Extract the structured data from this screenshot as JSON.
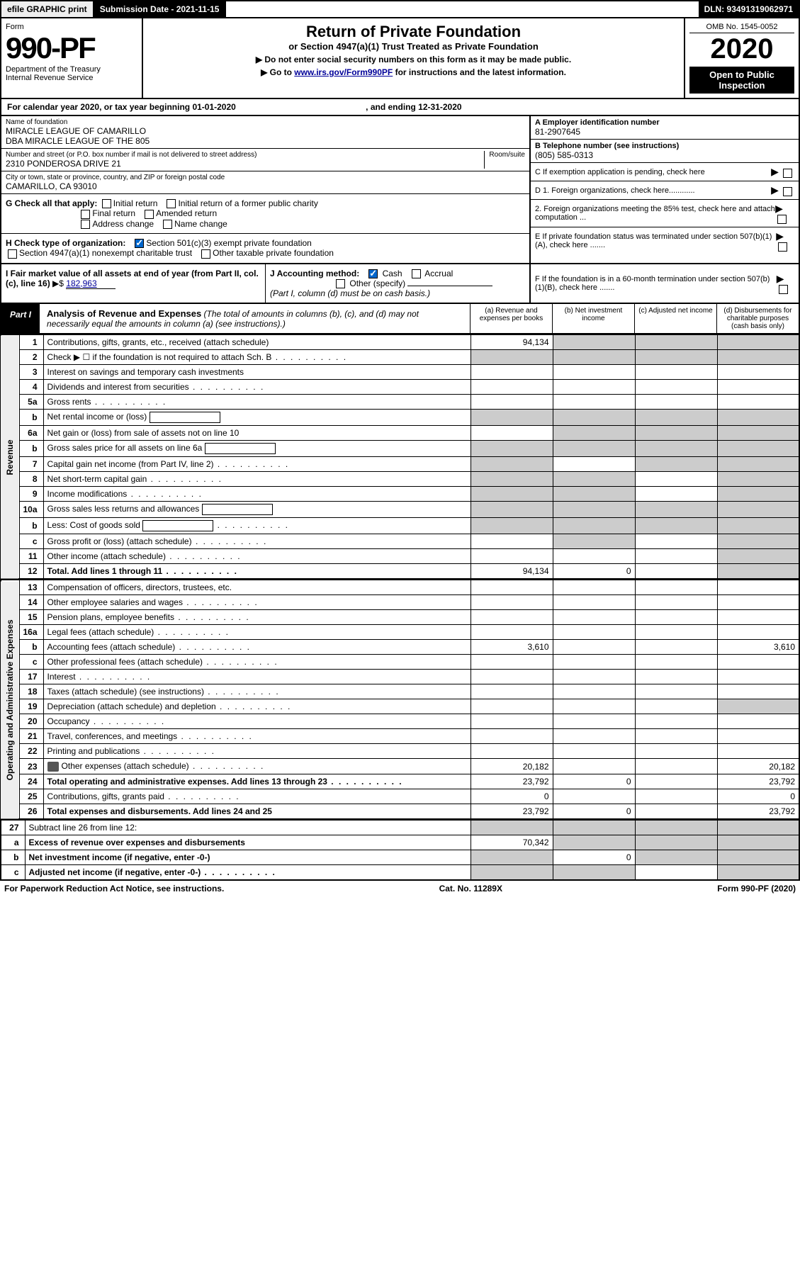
{
  "topbar": {
    "efile": "efile GRAPHIC print",
    "submission": "Submission Date - 2021-11-15",
    "dln": "DLN: 93491319062971"
  },
  "header": {
    "form_word": "Form",
    "form_num": "990-PF",
    "dept": "Department of the Treasury",
    "irs": "Internal Revenue Service",
    "title": "Return of Private Foundation",
    "subtitle": "or Section 4947(a)(1) Trust Treated as Private Foundation",
    "instr1": "▶ Do not enter social security numbers on this form as it may be made public.",
    "instr2_pre": "▶ Go to ",
    "instr2_link": "www.irs.gov/Form990PF",
    "instr2_post": " for instructions and the latest information.",
    "omb": "OMB No. 1545-0052",
    "year": "2020",
    "open": "Open to Public Inspection"
  },
  "cy": {
    "text": "For calendar year 2020, or tax year beginning 01-01-2020",
    "end": ", and ending 12-31-2020"
  },
  "foundation": {
    "name_label": "Name of foundation",
    "name1": "MIRACLE LEAGUE OF CAMARILLO",
    "name2": "DBA MIRACLE LEAGUE OF THE 805",
    "addr_label": "Number and street (or P.O. box number if mail is not delivered to street address)",
    "addr": "2310 PONDEROSA DRIVE 21",
    "room_label": "Room/suite",
    "city_label": "City or town, state or province, country, and ZIP or foreign postal code",
    "city": "CAMARILLO, CA  93010",
    "ein_label": "A Employer identification number",
    "ein": "81-2907645",
    "phone_label": "B Telephone number (see instructions)",
    "phone": "(805) 585-0313",
    "c_label": "C If exemption application is pending, check here",
    "d1": "D 1. Foreign organizations, check here............",
    "d2": "2. Foreign organizations meeting the 85% test, check here and attach computation ...",
    "e": "E  If private foundation status was terminated under section 507(b)(1)(A), check here .......",
    "f": "F  If the foundation is in a 60-month termination under section 507(b)(1)(B), check here .......",
    "g_label": "G Check all that apply:",
    "g_opts": [
      "Initial return",
      "Initial return of a former public charity",
      "Final return",
      "Amended return",
      "Address change",
      "Name change"
    ],
    "h_label": "H Check type of organization:",
    "h_501": "Section 501(c)(3) exempt private foundation",
    "h_4947": "Section 4947(a)(1) nonexempt charitable trust",
    "h_other": "Other taxable private foundation",
    "i_label": "I Fair market value of all assets at end of year (from Part II, col. (c), line 16)",
    "i_val": "182,963",
    "j_label": "J Accounting method:",
    "j_cash": "Cash",
    "j_accrual": "Accrual",
    "j_other": "Other (specify)",
    "j_note": "(Part I, column (d) must be on cash basis.)"
  },
  "part1": {
    "tab": "Part I",
    "title": "Analysis of Revenue and Expenses",
    "note": " (The total of amounts in columns (b), (c), and (d) may not necessarily equal the amounts in column (a) (see instructions).)",
    "col_a": "(a)   Revenue and expenses per books",
    "col_b": "(b)   Net investment income",
    "col_c": "(c)   Adjusted net income",
    "col_d": "(d)   Disbursements for charitable purposes (cash basis only)"
  },
  "sidelabels": {
    "revenue": "Revenue",
    "opex": "Operating and Administrative Expenses"
  },
  "rows": [
    {
      "n": "1",
      "d": "Contributions, gifts, grants, etc., received (attach schedule)",
      "a": "94,134",
      "shade_bcd": true
    },
    {
      "n": "2",
      "d": "Check ▶ ☐ if the foundation is not required to attach Sch. B",
      "dots": true,
      "shade_all": true
    },
    {
      "n": "3",
      "d": "Interest on savings and temporary cash investments"
    },
    {
      "n": "4",
      "d": "Dividends and interest from securities",
      "dots": true
    },
    {
      "n": "5a",
      "d": "Gross rents",
      "dots": true
    },
    {
      "n": "b",
      "d": "Net rental income or (loss)",
      "inline_box": true,
      "shade_all": true
    },
    {
      "n": "6a",
      "d": "Net gain or (loss) from sale of assets not on line 10",
      "shade_bcd": true
    },
    {
      "n": "b",
      "d": "Gross sales price for all assets on line 6a",
      "inline_box": true,
      "shade_all": true
    },
    {
      "n": "7",
      "d": "Capital gain net income (from Part IV, line 2)",
      "dots": true,
      "shade_a": true,
      "shade_cd": true
    },
    {
      "n": "8",
      "d": "Net short-term capital gain",
      "dots": true,
      "shade_ab": true,
      "shade_d": true
    },
    {
      "n": "9",
      "d": "Income modifications",
      "dots": true,
      "shade_ab": true,
      "shade_d": true
    },
    {
      "n": "10a",
      "d": "Gross sales less returns and allowances",
      "inline_box": true,
      "shade_all": true
    },
    {
      "n": "b",
      "d": "Less: Cost of goods sold",
      "dots": true,
      "inline_box": true,
      "shade_all": true
    },
    {
      "n": "c",
      "d": "Gross profit or (loss) (attach schedule)",
      "dots": true,
      "shade_b": true,
      "shade_d": true
    },
    {
      "n": "11",
      "d": "Other income (attach schedule)",
      "dots": true,
      "shade_d": true
    },
    {
      "n": "12",
      "d": "Total. Add lines 1 through 11",
      "dots": true,
      "bold": true,
      "a": "94,134",
      "b": "0",
      "shade_d": true
    }
  ],
  "oprows": [
    {
      "n": "13",
      "d": "Compensation of officers, directors, trustees, etc."
    },
    {
      "n": "14",
      "d": "Other employee salaries and wages",
      "dots": true
    },
    {
      "n": "15",
      "d": "Pension plans, employee benefits",
      "dots": true
    },
    {
      "n": "16a",
      "d": "Legal fees (attach schedule)",
      "dots": true
    },
    {
      "n": "b",
      "d": "Accounting fees (attach schedule)",
      "dots": true,
      "a": "3,610",
      "dd": "3,610"
    },
    {
      "n": "c",
      "d": "Other professional fees (attach schedule)",
      "dots": true
    },
    {
      "n": "17",
      "d": "Interest",
      "dots": true
    },
    {
      "n": "18",
      "d": "Taxes (attach schedule) (see instructions)",
      "dots": true
    },
    {
      "n": "19",
      "d": "Depreciation (attach schedule) and depletion",
      "dots": true,
      "shade_d": true
    },
    {
      "n": "20",
      "d": "Occupancy",
      "dots": true
    },
    {
      "n": "21",
      "d": "Travel, conferences, and meetings",
      "dots": true
    },
    {
      "n": "22",
      "d": "Printing and publications",
      "dots": true
    },
    {
      "n": "23",
      "d": "Other expenses (attach schedule)",
      "dots": true,
      "icon": true,
      "a": "20,182",
      "dd": "20,182"
    },
    {
      "n": "24",
      "d": "Total operating and administrative expenses. Add lines 13 through 23",
      "dots": true,
      "bold": true,
      "a": "23,792",
      "b": "0",
      "dd": "23,792"
    },
    {
      "n": "25",
      "d": "Contributions, gifts, grants paid",
      "dots": true,
      "a": "0",
      "dd": "0"
    },
    {
      "n": "26",
      "d": "Total expenses and disbursements. Add lines 24 and 25",
      "bold": true,
      "a": "23,792",
      "b": "0",
      "dd": "23,792"
    }
  ],
  "endrows": [
    {
      "n": "27",
      "d": "Subtract line 26 from line 12:",
      "shade_all": true
    },
    {
      "n": "a",
      "d": "Excess of revenue over expenses and disbursements",
      "bold": true,
      "a": "70,342",
      "shade_bcd": true
    },
    {
      "n": "b",
      "d": "Net investment income (if negative, enter -0-)",
      "bold": true,
      "b": "0",
      "shade_a": true,
      "shade_cd": true
    },
    {
      "n": "c",
      "d": "Adjusted net income (if negative, enter -0-)",
      "bold": true,
      "dots": true,
      "shade_ab": true,
      "shade_d": true
    }
  ],
  "footer": {
    "left": "For Paperwork Reduction Act Notice, see instructions.",
    "mid": "Cat. No. 11289X",
    "right": "Form 990-PF (2020)"
  }
}
